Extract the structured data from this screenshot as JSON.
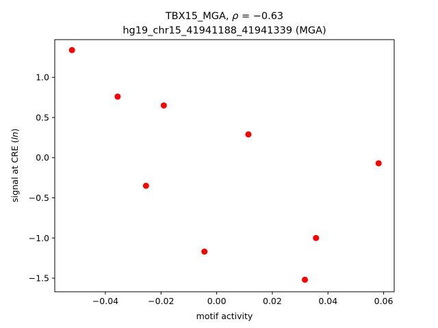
{
  "chart_data": {
    "type": "scatter",
    "title_line1": "TBX15_MGA, ρ = −0.63",
    "title_line2": "hg19_chr15_41941188_41941339 (MGA)",
    "xlabel": "motif activity",
    "ylabel": "signal at CRE (ln)",
    "xlim": [
      -0.0582,
      0.0638
    ],
    "ylim": [
      -1.67,
      1.47
    ],
    "xticks": [
      -0.04,
      -0.02,
      0.0,
      0.02,
      0.04,
      0.06
    ],
    "xtick_labels": [
      "−0.04",
      "−0.02",
      "0.00",
      "0.02",
      "0.04",
      "0.06"
    ],
    "yticks": [
      -1.5,
      -1.0,
      -0.5,
      0.0,
      0.5,
      1.0
    ],
    "ytick_labels": [
      "−1.5",
      "−1.0",
      "−0.5",
      "0.0",
      "0.5",
      "1.0"
    ],
    "grid": false,
    "marker_color": "#ff0000",
    "points": [
      {
        "x": -0.052,
        "y": 1.34
      },
      {
        "x": -0.0356,
        "y": 0.76
      },
      {
        "x": -0.019,
        "y": 0.65
      },
      {
        "x": -0.0254,
        "y": -0.35
      },
      {
        "x": -0.0044,
        "y": -1.17
      },
      {
        "x": 0.0114,
        "y": 0.29
      },
      {
        "x": 0.0357,
        "y": -1.0
      },
      {
        "x": 0.0317,
        "y": -1.52
      },
      {
        "x": 0.0582,
        "y": -0.07
      }
    ]
  }
}
